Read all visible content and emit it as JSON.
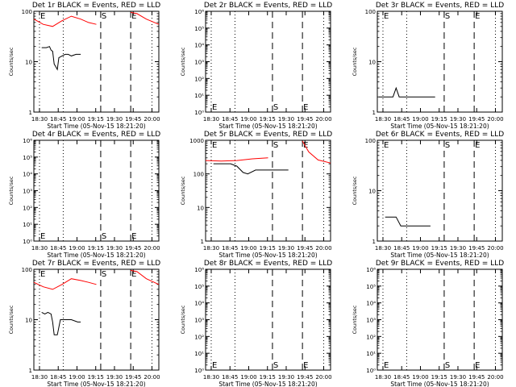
{
  "chart_data": [
    {
      "type": "line",
      "title": "Det 1r BLACK = Events, RED = LLD",
      "xlabel": "Start Time (05-Nov-15 18:21:20)",
      "ylabel": "Counts/sec",
      "yscale": "log",
      "ylim": [
        1,
        100
      ],
      "yticks": [
        "1",
        "10",
        "100"
      ],
      "xticks": [
        "18:30",
        "18:45",
        "19:00",
        "19:15",
        "19:30",
        "19:45",
        "20:00"
      ],
      "markers": [
        "E",
        "S",
        "E"
      ],
      "series": [
        {
          "name": "LLD",
          "color": "#ff0000",
          "x": [
            0.0,
            0.3,
            0.6,
            0.9,
            1.2,
            1.5,
            1.75,
            2.0,
            2.5,
            2.75,
            3.0,
            3.1,
            3.3,
            3.6,
            4.0
          ],
          "y": [
            70,
            55,
            50,
            65,
            80,
            70,
            60,
            55,
            52,
            52,
            55,
            95,
            90,
            70,
            55
          ]
        },
        {
          "name": "Events",
          "color": "#000000",
          "x": [
            0.25,
            0.3,
            0.4,
            0.5,
            0.55,
            0.6,
            0.65,
            0.7,
            0.75,
            0.8,
            0.9,
            1.0,
            1.1,
            1.2,
            1.35,
            1.5
          ],
          "y": [
            19,
            19,
            19,
            20,
            17,
            16,
            9,
            8,
            7,
            12,
            13,
            14,
            14,
            13,
            14,
            14
          ]
        }
      ]
    },
    {
      "type": "line",
      "title": "Det 2r BLACK = Events, RED = LLD",
      "xlabel": "Start Time (05-Nov-15 18:21:20)",
      "ylabel": "Counts/sec",
      "yscale": "log",
      "ylim": [
        1,
        1000000
      ],
      "yticks": [
        "10⁰",
        "10¹",
        "10²",
        "10³",
        "10⁴",
        "10⁵",
        "10⁶"
      ],
      "xticks": [
        "18:30",
        "18:45",
        "19:00",
        "19:15",
        "19:30",
        "19:45",
        "20:00"
      ],
      "markers": [
        "E",
        "S",
        "E"
      ],
      "series": []
    },
    {
      "type": "line",
      "title": "Det 3r BLACK = Events, RED = LLD",
      "xlabel": "Start Time (05-Nov-15 18:21:20)",
      "ylabel": "Counts/sec",
      "yscale": "log",
      "ylim": [
        1,
        100
      ],
      "yticks": [
        "1",
        "10",
        "100"
      ],
      "xticks": [
        "18:30",
        "18:45",
        "19:00",
        "19:15",
        "19:30",
        "19:45",
        "20:00"
      ],
      "markers": [
        "E",
        "S",
        "E"
      ],
      "series": [
        {
          "name": "Events",
          "color": "#000000",
          "x": [
            0.05,
            0.3,
            0.5,
            0.6,
            0.7,
            0.9,
            1.1,
            1.3,
            1.5,
            1.7,
            1.85
          ],
          "y": [
            2,
            2,
            2,
            3,
            2,
            2,
            2,
            2,
            2,
            2,
            2
          ]
        }
      ]
    },
    {
      "type": "line",
      "title": "Det 4r BLACK = Events, RED = LLD",
      "xlabel": "Start Time (05-Nov-15 18:21:20)",
      "ylabel": "Counts/sec",
      "yscale": "log",
      "ylim": [
        1,
        1000000
      ],
      "yticks": [
        "10⁰",
        "10¹",
        "10²",
        "10³",
        "10⁴",
        "10⁵",
        "10⁶"
      ],
      "xticks": [
        "18:30",
        "18:45",
        "19:00",
        "19:15",
        "19:30",
        "19:45",
        "20:00"
      ],
      "markers": [
        "E",
        "S",
        "E"
      ],
      "series": []
    },
    {
      "type": "line",
      "title": "Det 5r BLACK = Events, RED = LLD",
      "xlabel": "Start Time (05-Nov-15 18:21:20)",
      "ylabel": "Counts/sec",
      "yscale": "log",
      "ylim": [
        1,
        1000
      ],
      "yticks": [
        "1",
        "10",
        "100",
        "1000"
      ],
      "xticks": [
        "18:30",
        "18:45",
        "19:00",
        "19:15",
        "19:30",
        "19:45",
        "20:00"
      ],
      "markers": [
        "E",
        "S",
        "E"
      ],
      "series": [
        {
          "name": "LLD",
          "color": "#ff0000",
          "x": [
            0.0,
            0.5,
            1.0,
            1.5,
            2.0,
            2.5,
            2.9,
            3.0,
            3.1,
            3.3,
            3.6,
            4.0
          ],
          "y": [
            250,
            240,
            250,
            280,
            300,
            330,
            450,
            1000,
            950,
            450,
            260,
            210
          ]
        },
        {
          "name": "Events",
          "color": "#000000",
          "x": [
            0.25,
            0.5,
            0.7,
            0.8,
            1.0,
            1.2,
            1.35,
            1.6,
            1.8,
            2.0,
            2.3,
            2.5,
            2.65
          ],
          "y": [
            200,
            200,
            200,
            200,
            170,
            110,
            100,
            130,
            130,
            130,
            130,
            130,
            130
          ]
        }
      ]
    },
    {
      "type": "line",
      "title": "Det 6r BLACK = Events, RED = LLD",
      "xlabel": "Start Time (05-Nov-15 18:21:20)",
      "ylabel": "Counts/sec",
      "yscale": "log",
      "ylim": [
        1,
        100
      ],
      "yticks": [
        "1",
        "10",
        "100"
      ],
      "xticks": [
        "18:30",
        "18:45",
        "19:00",
        "19:15",
        "19:30",
        "19:45",
        "20:00"
      ],
      "markers": [
        "E",
        "S",
        "E"
      ],
      "series": [
        {
          "name": "Events",
          "color": "#000000",
          "x": [
            0.25,
            0.4,
            0.5,
            0.6,
            0.75,
            0.9,
            1.1,
            1.3,
            1.5,
            1.7
          ],
          "y": [
            3,
            3,
            3,
            3,
            2,
            2,
            2,
            2,
            2,
            2
          ]
        }
      ]
    },
    {
      "type": "line",
      "title": "Det 7r BLACK = Events, RED = LLD",
      "xlabel": "Start Time (05-Nov-15 18:21:20)",
      "ylabel": "Counts/sec",
      "yscale": "log",
      "ylim": [
        1,
        100
      ],
      "yticks": [
        "1",
        "10",
        "100"
      ],
      "xticks": [
        "18:30",
        "18:45",
        "19:00",
        "19:15",
        "19:30",
        "19:45",
        "20:00"
      ],
      "markers": [
        "E",
        "S",
        "E"
      ],
      "series": [
        {
          "name": "LLD",
          "color": "#ff0000",
          "x": [
            0.0,
            0.3,
            0.6,
            0.9,
            1.2,
            1.5,
            1.75,
            2.0,
            2.5,
            2.75,
            3.0,
            3.1,
            3.3,
            3.6,
            4.0
          ],
          "y": [
            55,
            45,
            40,
            50,
            65,
            60,
            55,
            50,
            48,
            50,
            55,
            95,
            90,
            65,
            50
          ]
        },
        {
          "name": "Events",
          "color": "#000000",
          "x": [
            0.25,
            0.35,
            0.45,
            0.55,
            0.6,
            0.65,
            0.7,
            0.75,
            0.85,
            1.0,
            1.2,
            1.4,
            1.5
          ],
          "y": [
            14,
            13,
            14,
            13,
            9,
            5,
            5,
            5,
            10,
            10,
            10,
            9,
            9
          ]
        }
      ]
    },
    {
      "type": "line",
      "title": "Det 8r BLACK = Events, RED = LLD",
      "xlabel": "Start Time (05-Nov-15 18:21:20)",
      "ylabel": "Counts/sec",
      "yscale": "log",
      "ylim": [
        1,
        1000000
      ],
      "yticks": [
        "10⁰",
        "10¹",
        "10²",
        "10³",
        "10⁴",
        "10⁵",
        "10⁶"
      ],
      "xticks": [
        "18:30",
        "18:45",
        "19:00",
        "19:15",
        "19:30",
        "19:45",
        "20:00"
      ],
      "markers": [
        "E",
        "S",
        "E"
      ],
      "series": []
    },
    {
      "type": "line",
      "title": "Det 9r BLACK = Events, RED = LLD",
      "xlabel": "Start Time (05-Nov-15 18:21:20)",
      "ylabel": "Counts/sec",
      "yscale": "log",
      "ylim": [
        1,
        1000000
      ],
      "yticks": [
        "10⁰",
        "10¹",
        "10²",
        "10³",
        "10⁴",
        "10⁵",
        "10⁶"
      ],
      "xticks": [
        "18:30",
        "18:45",
        "19:00",
        "19:15",
        "19:30",
        "19:45",
        "20:00"
      ],
      "markers": [
        "E",
        "S",
        "E"
      ],
      "series": []
    }
  ]
}
